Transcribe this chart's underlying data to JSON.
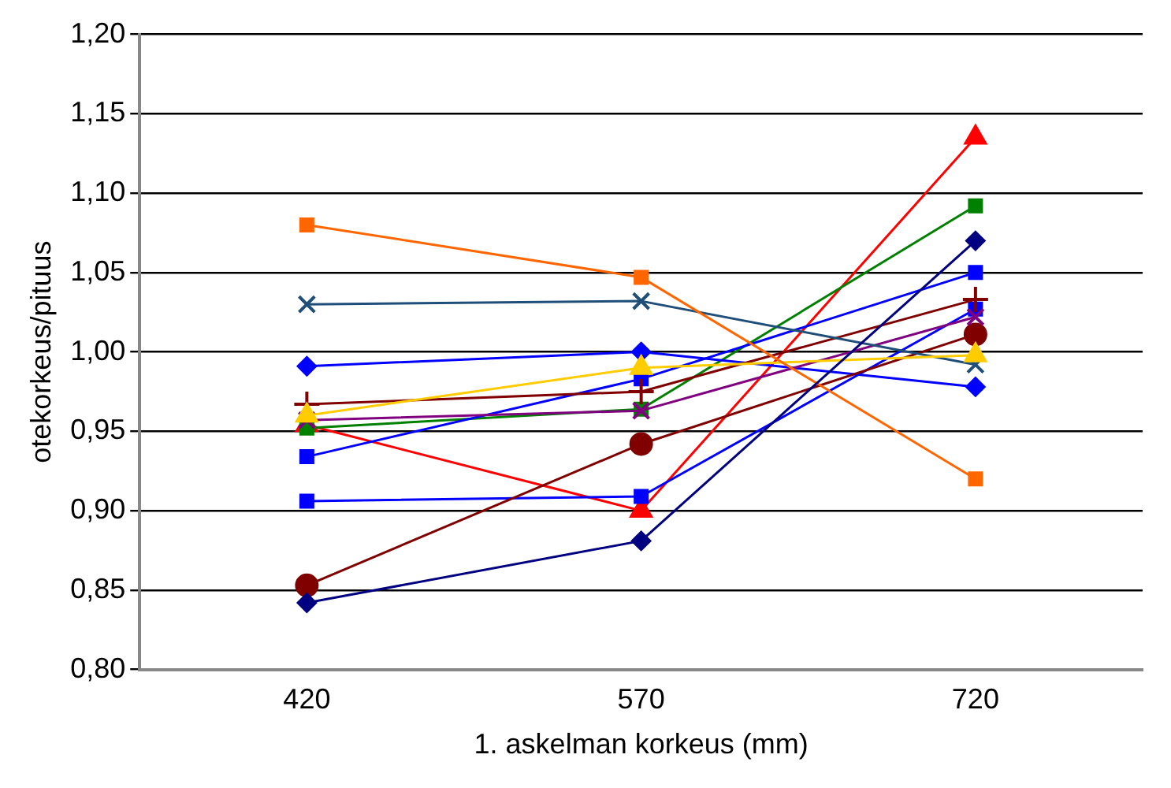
{
  "chart_data": {
    "type": "line",
    "xlabel": "1. askelman korkeus (mm)",
    "ylabel": "otekorkeus/pituus",
    "categories": [
      "420",
      "570",
      "720"
    ],
    "ylim": [
      0.8,
      1.2
    ],
    "yticks": [
      {
        "value": 0.8,
        "label": "0,80"
      },
      {
        "value": 0.85,
        "label": "0,85"
      },
      {
        "value": 0.9,
        "label": "0,90"
      },
      {
        "value": 0.95,
        "label": "0,95"
      },
      {
        "value": 1.0,
        "label": "1,00"
      },
      {
        "value": 1.05,
        "label": "1,05"
      },
      {
        "value": 1.1,
        "label": "1,10"
      },
      {
        "value": 1.15,
        "label": "1,15"
      },
      {
        "value": 1.2,
        "label": "1,20"
      }
    ],
    "grid": "y",
    "legend": false,
    "line_style": "solid",
    "series": [
      {
        "color": "#000080",
        "marker": "diamond",
        "values": [
          0.842,
          0.881,
          1.07
        ]
      },
      {
        "color": "#ff6600",
        "marker": "square",
        "values": [
          1.08,
          1.047,
          0.92
        ]
      },
      {
        "color": "#ffcc00",
        "marker": "triangle",
        "values": [
          0.96,
          0.99,
          0.998
        ]
      },
      {
        "color": "#1f4e79",
        "marker": "cross",
        "values": [
          1.03,
          1.032,
          0.992
        ]
      },
      {
        "color": "#800080",
        "marker": "cross",
        "values": [
          0.957,
          0.963,
          1.022
        ]
      },
      {
        "color": "#800000",
        "marker": "circle",
        "values": [
          0.853,
          0.942,
          1.011
        ]
      },
      {
        "color": "#800000",
        "marker": "plus",
        "values": [
          0.967,
          0.975,
          1.033
        ]
      },
      {
        "color": "#0000ff",
        "marker": "square",
        "values": [
          0.934,
          0.983,
          1.05
        ]
      },
      {
        "color": "#0000ff",
        "marker": "square",
        "values": [
          0.906,
          0.909,
          1.027
        ]
      },
      {
        "color": "#0000ff",
        "marker": "diamond",
        "values": [
          0.991,
          1.0,
          0.978
        ]
      },
      {
        "color": "#008000",
        "marker": "square",
        "values": [
          0.952,
          0.964,
          1.092
        ]
      },
      {
        "color": "#ff0000",
        "marker": "triangle",
        "values": [
          0.954,
          0.9,
          1.135
        ]
      }
    ]
  }
}
